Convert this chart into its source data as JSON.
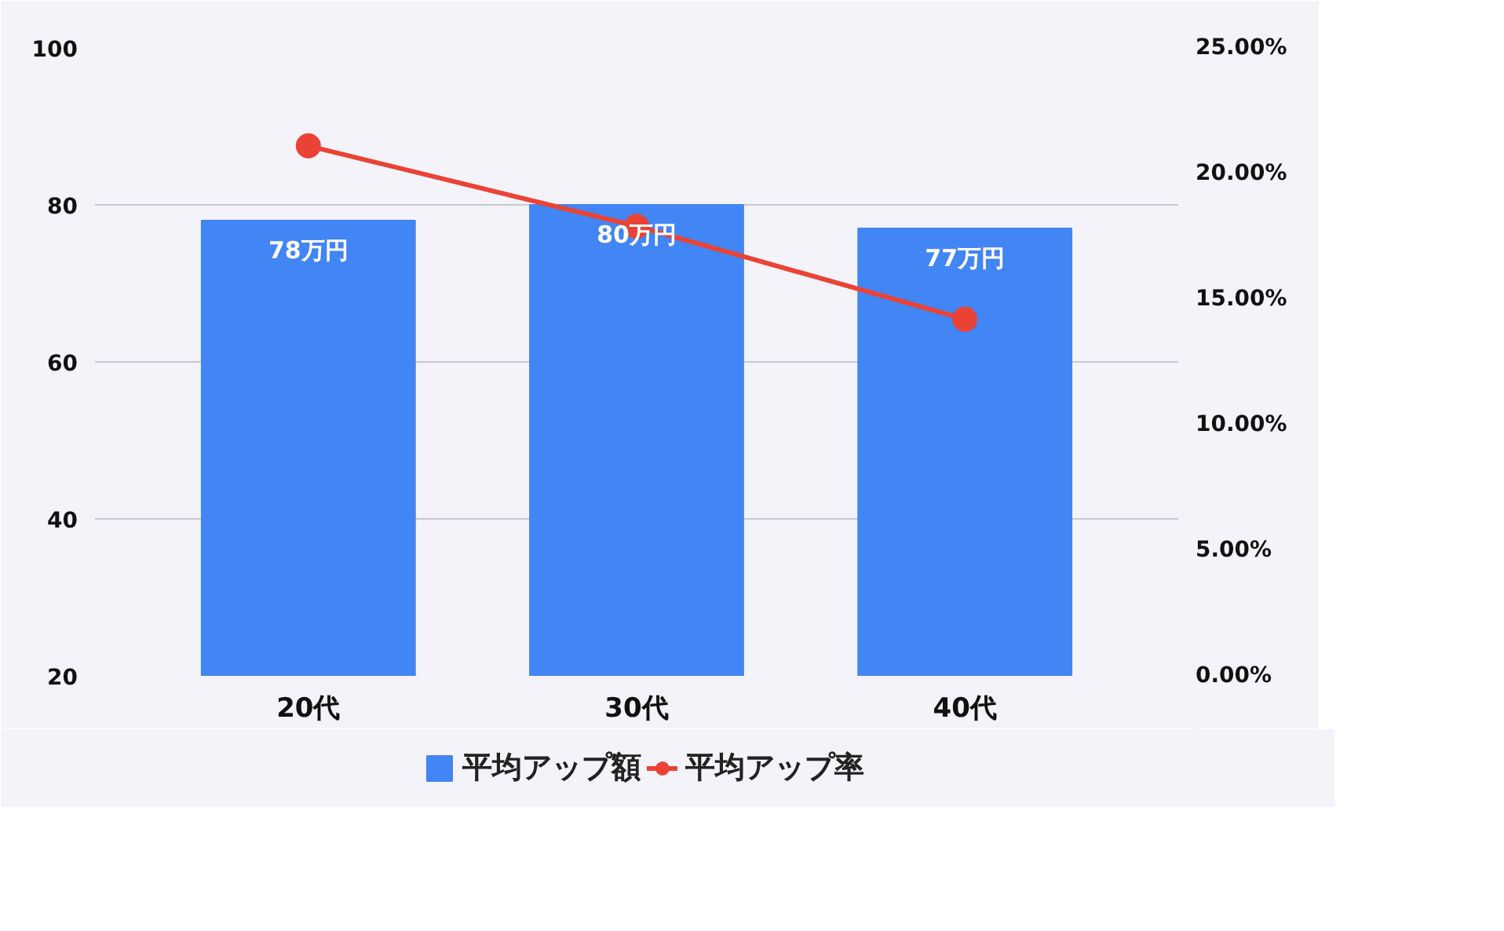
{
  "chart_data": {
    "type": "bar",
    "categories": [
      "20代",
      "30代",
      "40代"
    ],
    "series": [
      {
        "name": "平均アップ額",
        "color": "#4285f4",
        "values": [
          78,
          80,
          77
        ],
        "value_labels": [
          "78万円",
          "80万円",
          "77万円"
        ]
      },
      {
        "name": "平均アップ率",
        "type": "line",
        "axis": "y2",
        "color": "#ea4335",
        "values": [
          21.1,
          17.9,
          14.2
        ],
        "marker": "circle"
      }
    ],
    "ylim": [
      20,
      100
    ],
    "yticks": [
      20,
      40,
      60,
      80,
      100
    ],
    "y2lim": [
      0,
      25
    ],
    "y2ticks": [
      {
        "value": 0,
        "label": "0.00%"
      },
      {
        "value": 5,
        "label": "5.00%"
      },
      {
        "value": 10,
        "label": "10.00%"
      },
      {
        "value": 15,
        "label": "15.00%"
      },
      {
        "value": 20,
        "label": "20.00%"
      },
      {
        "value": 25,
        "label": "25.00%"
      }
    ],
    "grid": "y",
    "legend": "bottom"
  }
}
